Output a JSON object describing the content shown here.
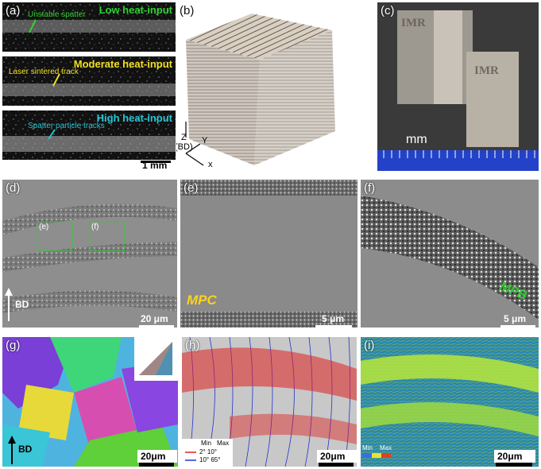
{
  "panels": {
    "a": {
      "label": "(a)",
      "strips": [
        {
          "title": "Low heat-input",
          "annotation": "Unstable spatter",
          "color": "#2fd12f"
        },
        {
          "title": "Moderate heat-input",
          "annotation": "Laser sintered track",
          "color": "#f0e020"
        },
        {
          "title": "High heat-input",
          "annotation": "Spatter particle tracks",
          "color": "#27c6d6"
        }
      ],
      "scale": "1 mm"
    },
    "b": {
      "label": "(b)",
      "axes": {
        "z": "Z",
        "bd": "(BD)",
        "y": "Y",
        "x": "x"
      }
    },
    "c": {
      "label": "(c)",
      "sample_text": "IMR",
      "unit": "mm"
    },
    "d": {
      "label": "(d)",
      "box_e": "(e)",
      "box_f": "(f)",
      "bd": "BD",
      "scale": "20 μm"
    },
    "e": {
      "label": "(e)",
      "region": "MPC",
      "region_color": "#ffd21a",
      "scale": "5 μm"
    },
    "f": {
      "label": "(f)",
      "region": "MPB",
      "region_color": "#33cc33",
      "scale": "5 μm"
    },
    "g": {
      "label": "(g)",
      "bd": "BD",
      "scale": "20μm"
    },
    "h": {
      "label": "(h)",
      "legend": {
        "min": "Min",
        "max": "Max",
        "red": "2°  10°",
        "blue": "10°  65°"
      },
      "colors": {
        "low_angle": "#e02020",
        "high_angle": "#2233cc"
      },
      "scale": "20μm"
    },
    "i": {
      "label": "(i)",
      "legend_min": "Min",
      "legend_max": "Max",
      "scale": "20μm"
    }
  }
}
